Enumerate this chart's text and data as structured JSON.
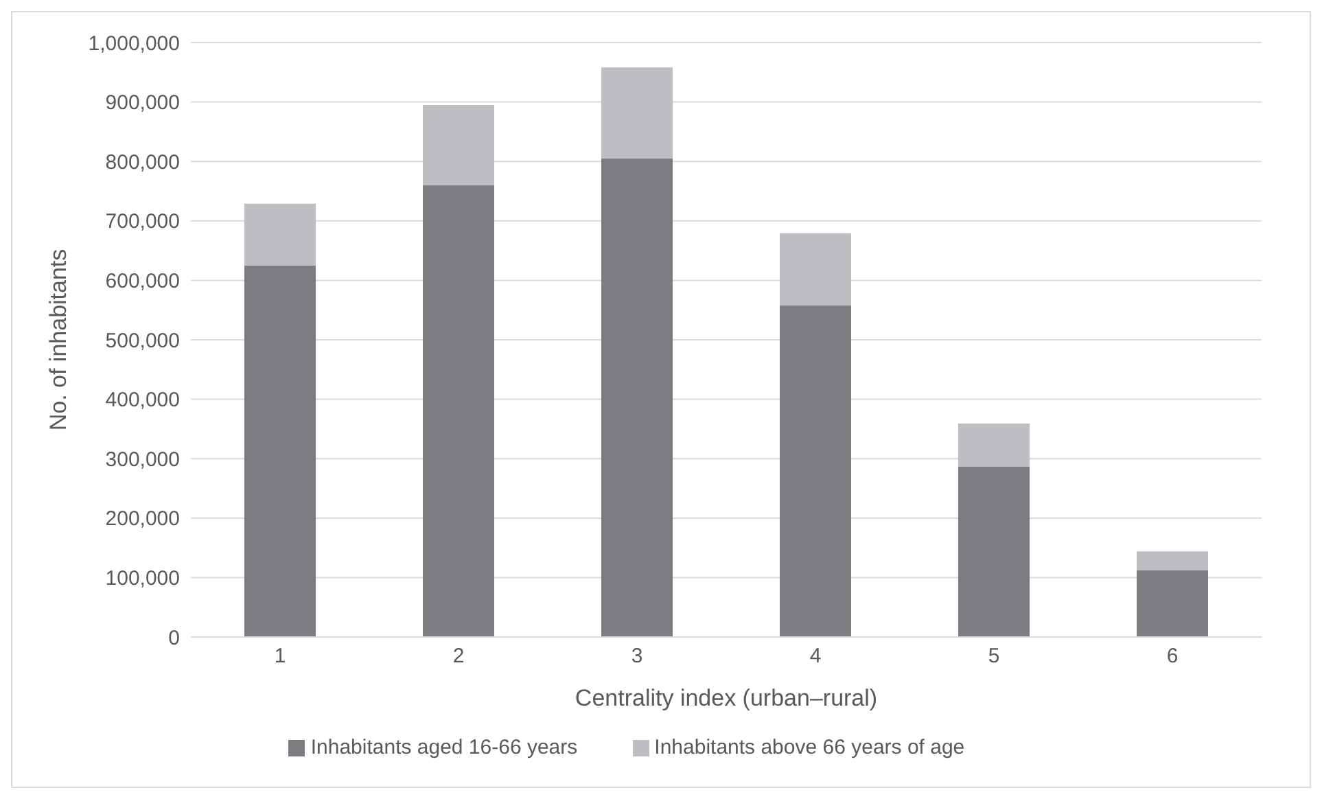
{
  "chart_data": {
    "type": "bar",
    "stacked": true,
    "xlabel": "Centrality index (urban–rural)",
    "ylabel": "No. of inhabitants",
    "categories": [
      "1",
      "2",
      "3",
      "4",
      "5",
      "6"
    ],
    "series": [
      {
        "name": "Inhabitants aged 16-66 years",
        "color": "#7c7d81",
        "values": [
          625000,
          760000,
          805000,
          558000,
          287000,
          112000
        ]
      },
      {
        "name": "Inhabitants above 66 years of age",
        "color": "#bdbec1",
        "values": [
          104000,
          135000,
          153000,
          121000,
          72000,
          32000
        ]
      }
    ],
    "ylim": [
      0,
      1000000
    ],
    "yticks": [
      0,
      {
        "value": 100000,
        "label": "100,000"
      },
      {
        "value": 200000,
        "label": "200,000"
      },
      {
        "value": 300000,
        "label": "300,000"
      },
      {
        "value": 400000,
        "label": "400,000"
      },
      {
        "value": 500000,
        "label": "500,000"
      },
      {
        "value": 600000,
        "label": "600,000"
      },
      {
        "value": 700000,
        "label": "700,000"
      },
      {
        "value": 800000,
        "label": "800,000"
      },
      {
        "value": 900000,
        "label": "900,000"
      },
      {
        "value": 1000000,
        "label": "1,000,000"
      }
    ],
    "grid": "y",
    "legend": "bottom"
  }
}
